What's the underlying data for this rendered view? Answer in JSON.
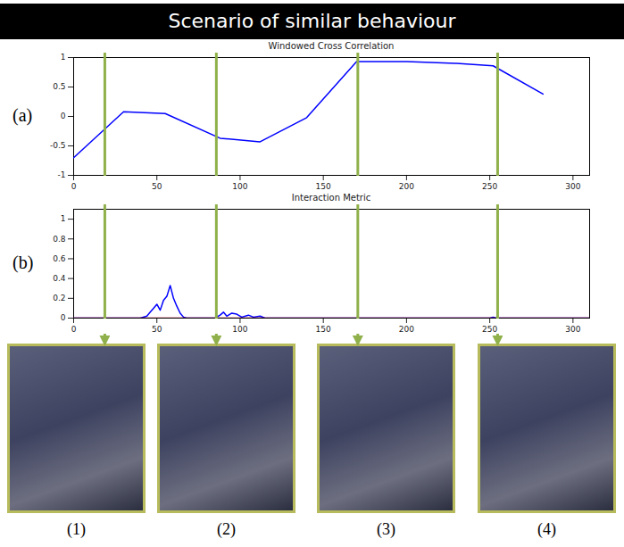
{
  "title": "Scenario of similar behaviour",
  "chart_data": [
    {
      "type": "line",
      "panel": "(a)",
      "title": "Windowed Cross Correlation",
      "series": [
        {
          "color": "#0000ff",
          "x": [
            0,
            30,
            55,
            88,
            112,
            140,
            170,
            200,
            230,
            252,
            282
          ],
          "values": [
            -0.7,
            0.08,
            0.05,
            -0.37,
            -0.43,
            -0.02,
            0.93,
            0.93,
            0.9,
            0.86,
            0.38
          ]
        }
      ],
      "xlim": [
        0,
        310
      ],
      "xticks": [
        0,
        50,
        100,
        150,
        200,
        250,
        300
      ],
      "ylim": [
        -1,
        1
      ],
      "yticks": [
        -1,
        -0.5,
        0,
        0.5,
        1
      ]
    },
    {
      "type": "line",
      "panel": "(b)",
      "title": "Interaction Metric",
      "series": [
        {
          "color": "#0000ff",
          "x": [
            0,
            40,
            44,
            46,
            48,
            50,
            52,
            54,
            56,
            58,
            60,
            62,
            64,
            66,
            68,
            85,
            88,
            90,
            92,
            95,
            98,
            101,
            105,
            108,
            112,
            115,
            250,
            252,
            254,
            310
          ],
          "values": [
            0,
            0,
            0.02,
            0.06,
            0.1,
            0.14,
            0.08,
            0.18,
            0.22,
            0.33,
            0.2,
            0.12,
            0.05,
            0.01,
            0,
            0,
            0.03,
            0.06,
            0.02,
            0.05,
            0.04,
            0.01,
            0.03,
            0.01,
            0.02,
            0,
            0,
            0.01,
            0,
            0
          ]
        },
        {
          "color": "#cc0033",
          "x": [
            0,
            310
          ],
          "values": [
            0,
            0
          ]
        }
      ],
      "xlim": [
        0,
        310
      ],
      "xticks": [
        0,
        50,
        100,
        150,
        200,
        250,
        300
      ],
      "ylim": [
        0,
        1.1
      ],
      "yticks": [
        0,
        0.2,
        0.4,
        0.6,
        0.8,
        1
      ]
    }
  ],
  "frames": [
    {
      "label": "(1)",
      "x": 19
    },
    {
      "label": "(2)",
      "x": 86
    },
    {
      "label": "(3)",
      "x": 171
    },
    {
      "label": "(4)",
      "x": 255
    }
  ]
}
